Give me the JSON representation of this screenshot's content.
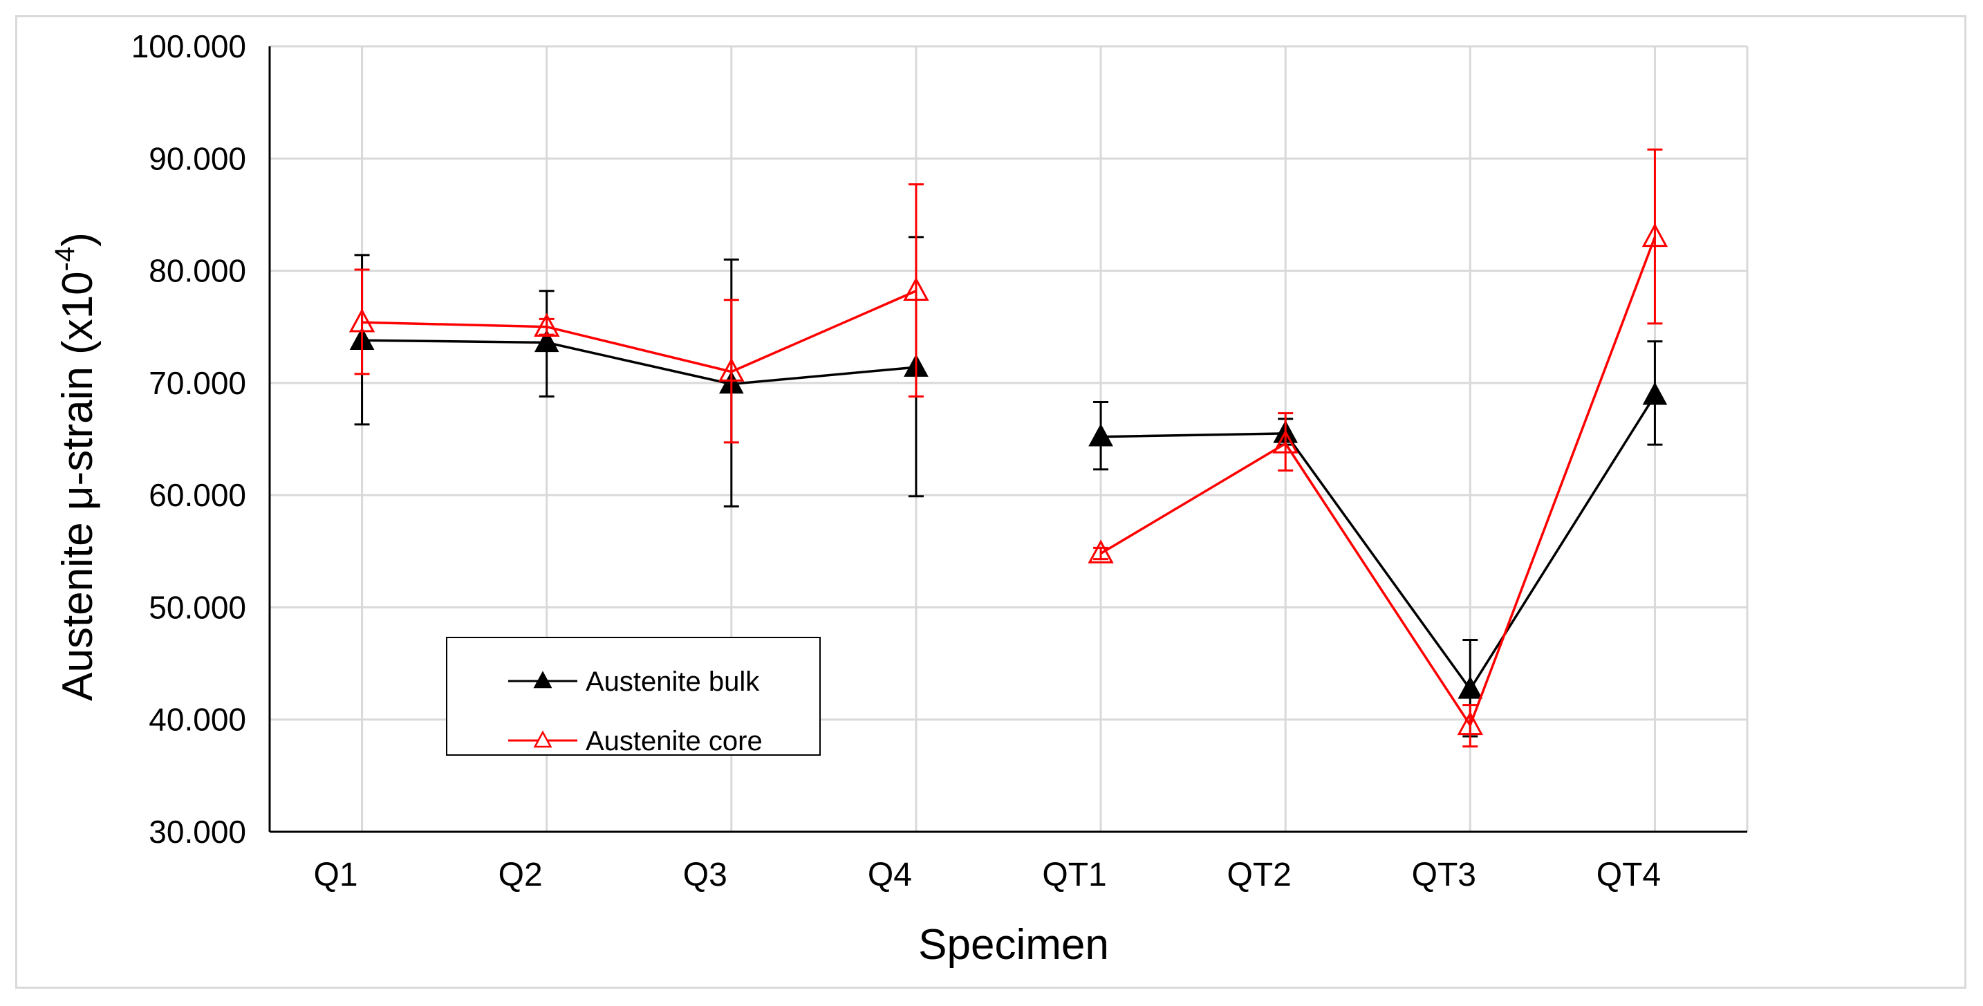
{
  "chart_data": {
    "type": "line",
    "xlabel": "Specimen",
    "ylabel": "Austenite μ-strain (x10",
    "ylabel_exponent": "-4",
    "ylabel_close": ")",
    "ylim": [
      30,
      100
    ],
    "ytick_values": [
      30,
      40,
      50,
      60,
      70,
      80,
      90,
      100
    ],
    "ytick_labels": [
      "30.000",
      "40.000",
      "50.000",
      "60.000",
      "70.000",
      "80.000",
      "90.000",
      "100.000"
    ],
    "categories": [
      "Q1",
      "Q2",
      "Q3",
      "Q4",
      "QT1",
      "QT2",
      "QT3",
      "QT4"
    ],
    "grid": true,
    "legend_position": "lower-left",
    "series": [
      {
        "name": "Austenite bulk",
        "color": "#000000",
        "marker": "filled-triangle",
        "values": [
          73.8,
          73.6,
          69.9,
          71.4,
          65.2,
          65.5,
          42.7,
          68.9
        ],
        "err_low": [
          66.3,
          68.8,
          59.0,
          59.9,
          62.3,
          64.5,
          38.5,
          64.5
        ],
        "err_high": [
          81.4,
          78.2,
          81.0,
          83.0,
          68.3,
          66.8,
          47.1,
          73.7
        ],
        "segments": [
          [
            0,
            3
          ],
          [
            4,
            7
          ]
        ]
      },
      {
        "name": "Austenite core",
        "color": "#ff0000",
        "marker": "open-triangle",
        "values": [
          75.4,
          75.0,
          71.0,
          78.2,
          54.8,
          64.6,
          39.5,
          83.0
        ],
        "err_low": [
          70.8,
          74.3,
          64.7,
          68.8,
          54.3,
          62.2,
          37.6,
          75.3
        ],
        "err_high": [
          80.1,
          75.7,
          77.4,
          87.7,
          55.3,
          67.3,
          41.3,
          90.8
        ],
        "segments": [
          [
            0,
            3
          ],
          [
            4,
            7
          ]
        ]
      }
    ]
  }
}
